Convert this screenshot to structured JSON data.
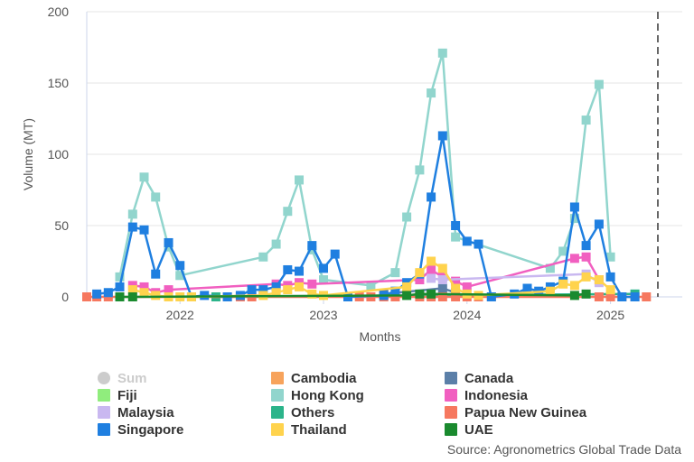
{
  "chart_data": {
    "type": "line",
    "xlabel": "Months",
    "ylabel": "Volume (MT)",
    "ylim": [
      0,
      200
    ],
    "yticks": [
      "0",
      "50",
      "100",
      "150",
      "200"
    ],
    "xticks": [
      "2022",
      "2023",
      "2024",
      "2025"
    ],
    "xtick_values": [
      2022.0,
      2023.0,
      2024.0,
      2025.0
    ],
    "xlim": [
      2021.35,
      2025.5
    ],
    "plot_line_x": 2025.33,
    "grid": true,
    "legend_position": "bottom",
    "source": "Source: Agronometrics Global Trade Data",
    "series": [
      {
        "name": "Sum",
        "color": "#cccccc",
        "hidden": true,
        "marker": "circle",
        "points": []
      },
      {
        "name": "Cambodia",
        "color": "#f7a35c",
        "marker": "square",
        "points": []
      },
      {
        "name": "Canada",
        "color": "#5b7fa8",
        "marker": "square",
        "points": [
          [
            2023.42,
            2
          ],
          [
            2023.83,
            6
          ],
          [
            2023.92,
            3
          ]
        ]
      },
      {
        "name": "Fiji",
        "color": "#90ed7d",
        "marker": "square",
        "points": []
      },
      {
        "name": "Hong Kong",
        "color": "#91d5cd",
        "marker": "square",
        "points": [
          [
            2021.58,
            14
          ],
          [
            2021.67,
            58
          ],
          [
            2021.75,
            84
          ],
          [
            2021.83,
            70
          ],
          [
            2021.92,
            35
          ],
          [
            2022.0,
            15
          ],
          [
            2022.58,
            28
          ],
          [
            2022.67,
            37
          ],
          [
            2022.75,
            60
          ],
          [
            2022.83,
            82
          ],
          [
            2022.92,
            33
          ],
          [
            2023.0,
            12
          ],
          [
            2023.33,
            8
          ],
          [
            2023.5,
            17
          ],
          [
            2023.58,
            56
          ],
          [
            2023.67,
            89
          ],
          [
            2023.75,
            143
          ],
          [
            2023.83,
            171
          ],
          [
            2023.92,
            42
          ],
          [
            2024.58,
            20
          ],
          [
            2024.67,
            32
          ],
          [
            2024.75,
            55
          ],
          [
            2024.83,
            124
          ],
          [
            2024.92,
            149
          ],
          [
            2025.0,
            28
          ]
        ]
      },
      {
        "name": "Indonesia",
        "color": "#f15fc0",
        "marker": "square",
        "points": [
          [
            2021.67,
            8
          ],
          [
            2021.75,
            7
          ],
          [
            2021.83,
            3
          ],
          [
            2021.92,
            5
          ],
          [
            2022.67,
            9
          ],
          [
            2022.75,
            8
          ],
          [
            2022.83,
            10
          ],
          [
            2022.92,
            9
          ],
          [
            2023.67,
            12
          ],
          [
            2023.75,
            19
          ],
          [
            2023.83,
            14
          ],
          [
            2023.92,
            11
          ],
          [
            2024.0,
            7
          ],
          [
            2024.75,
            27
          ],
          [
            2024.83,
            28
          ],
          [
            2024.92,
            12
          ]
        ]
      },
      {
        "name": "Malaysia",
        "color": "#c9b8f0",
        "marker": "square",
        "points": [
          [
            2023.75,
            13
          ],
          [
            2023.83,
            12
          ],
          [
            2024.83,
            16
          ],
          [
            2024.92,
            10
          ]
        ]
      },
      {
        "name": "Others",
        "color": "#2bb48a",
        "marker": "square",
        "points": [
          [
            2022.25,
            0
          ],
          [
            2025.17,
            2
          ]
        ]
      },
      {
        "name": "Papua New Guinea",
        "color": "#f6785f",
        "marker": "square",
        "points": [
          [
            2021.35,
            0
          ],
          [
            2021.42,
            0
          ],
          [
            2021.5,
            0
          ],
          [
            2022.33,
            0
          ],
          [
            2022.42,
            0
          ],
          [
            2022.5,
            0
          ],
          [
            2023.17,
            0
          ],
          [
            2023.25,
            0
          ],
          [
            2023.33,
            0
          ],
          [
            2023.42,
            0
          ],
          [
            2023.5,
            0
          ],
          [
            2023.67,
            0
          ],
          [
            2023.75,
            0
          ],
          [
            2023.83,
            0
          ],
          [
            2023.92,
            0
          ],
          [
            2024.0,
            0
          ],
          [
            2024.08,
            0
          ],
          [
            2024.17,
            0
          ],
          [
            2024.92,
            0
          ],
          [
            2025.0,
            0
          ],
          [
            2025.08,
            0
          ],
          [
            2025.17,
            0
          ],
          [
            2025.25,
            0
          ]
        ]
      },
      {
        "name": "Singapore",
        "color": "#1f7fe0",
        "marker": "square",
        "points": [
          [
            2021.42,
            2
          ],
          [
            2021.5,
            3
          ],
          [
            2021.58,
            7
          ],
          [
            2021.67,
            49
          ],
          [
            2021.75,
            47
          ],
          [
            2021.83,
            16
          ],
          [
            2021.92,
            38
          ],
          [
            2022.0,
            22
          ],
          [
            2022.08,
            0
          ],
          [
            2022.17,
            1
          ],
          [
            2022.33,
            0
          ],
          [
            2022.42,
            1
          ],
          [
            2022.5,
            5
          ],
          [
            2022.58,
            5
          ],
          [
            2022.67,
            7
          ],
          [
            2022.75,
            19
          ],
          [
            2022.83,
            18
          ],
          [
            2022.92,
            36
          ],
          [
            2023.0,
            20
          ],
          [
            2023.08,
            30
          ],
          [
            2023.17,
            0
          ],
          [
            2023.42,
            1
          ],
          [
            2023.5,
            4
          ],
          [
            2023.58,
            10
          ],
          [
            2023.67,
            16
          ],
          [
            2023.75,
            70
          ],
          [
            2023.83,
            113
          ],
          [
            2023.92,
            50
          ],
          [
            2024.0,
            39
          ],
          [
            2024.08,
            37
          ],
          [
            2024.17,
            0
          ],
          [
            2024.33,
            2
          ],
          [
            2024.42,
            6
          ],
          [
            2024.5,
            4
          ],
          [
            2024.58,
            7
          ],
          [
            2024.67,
            11
          ],
          [
            2024.75,
            63
          ],
          [
            2024.83,
            36
          ],
          [
            2024.92,
            51
          ],
          [
            2025.0,
            14
          ],
          [
            2025.08,
            0
          ],
          [
            2025.17,
            0
          ]
        ]
      },
      {
        "name": "Thailand",
        "color": "#ffd34d",
        "marker": "square",
        "points": [
          [
            2021.67,
            5
          ],
          [
            2021.75,
            3
          ],
          [
            2021.83,
            1
          ],
          [
            2021.92,
            0
          ],
          [
            2022.0,
            0
          ],
          [
            2022.08,
            0
          ],
          [
            2022.58,
            1
          ],
          [
            2022.67,
            3
          ],
          [
            2022.75,
            5
          ],
          [
            2022.83,
            7
          ],
          [
            2022.92,
            2
          ],
          [
            2023.0,
            1
          ],
          [
            2023.58,
            7
          ],
          [
            2023.67,
            17
          ],
          [
            2023.75,
            25
          ],
          [
            2023.83,
            20
          ],
          [
            2023.92,
            6
          ],
          [
            2024.0,
            2
          ],
          [
            2024.08,
            1
          ],
          [
            2024.58,
            4
          ],
          [
            2024.67,
            9
          ],
          [
            2024.75,
            8
          ],
          [
            2024.83,
            14
          ],
          [
            2024.92,
            12
          ],
          [
            2025.0,
            5
          ]
        ]
      },
      {
        "name": "UAE",
        "color": "#1a8a2e",
        "marker": "square",
        "points": [
          [
            2021.58,
            0
          ],
          [
            2021.67,
            0
          ],
          [
            2023.58,
            1
          ],
          [
            2023.67,
            2
          ],
          [
            2023.75,
            2
          ],
          [
            2024.75,
            1
          ],
          [
            2024.83,
            2
          ]
        ]
      }
    ]
  }
}
